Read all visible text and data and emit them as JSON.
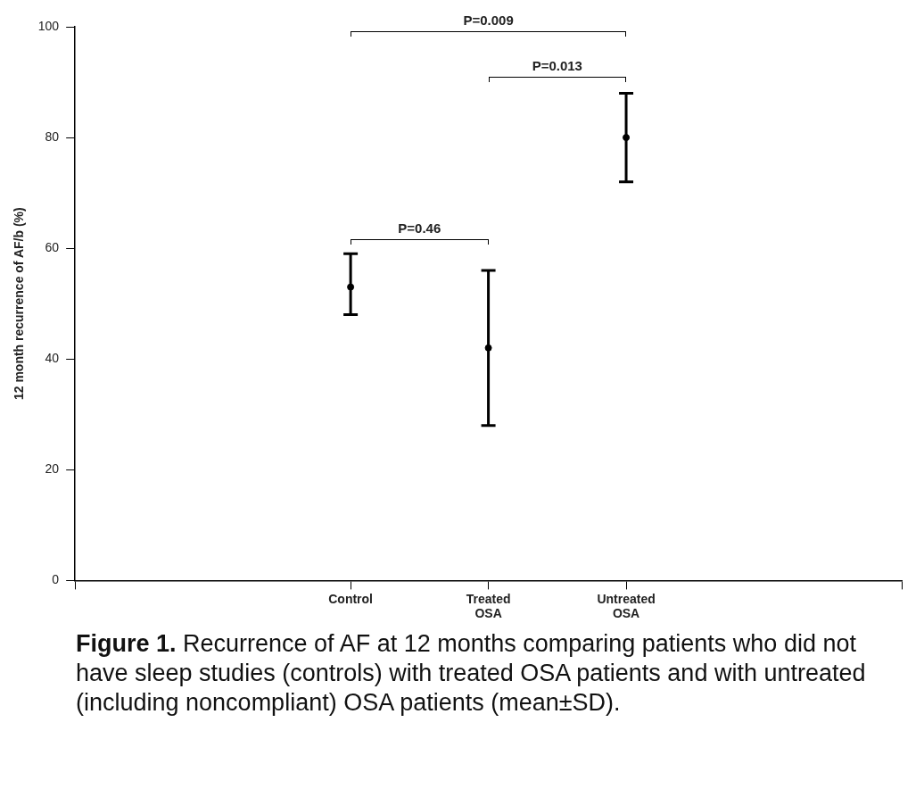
{
  "chart_data": {
    "type": "scatter",
    "ylabel": "12 month recurrence of AF/b (%)",
    "categories": [
      null,
      null,
      "Control",
      "Treated OSA",
      "Untreated OSA",
      null,
      null
    ],
    "values": [
      null,
      null,
      53,
      42,
      80,
      null,
      null
    ],
    "errors": [
      null,
      null,
      [
        48,
        59
      ],
      [
        28,
        56
      ],
      [
        72,
        88
      ],
      null,
      null
    ],
    "color": "#000000",
    "marker": "circle",
    "ylim": [
      0,
      100
    ],
    "yticks": [
      0,
      20,
      40,
      60,
      80,
      100
    ],
    "grid": false,
    "legend": false,
    "annotations": [
      "P=0.009",
      "P=0.013",
      "P=0.46",
      "Figure 1. Recurrence of AF at 12 months comparing patients who did not have sleep studies (controls) with treated OSA patients and with untreated (including noncompliant) OSA patients (mean±SD)."
    ]
  }
}
